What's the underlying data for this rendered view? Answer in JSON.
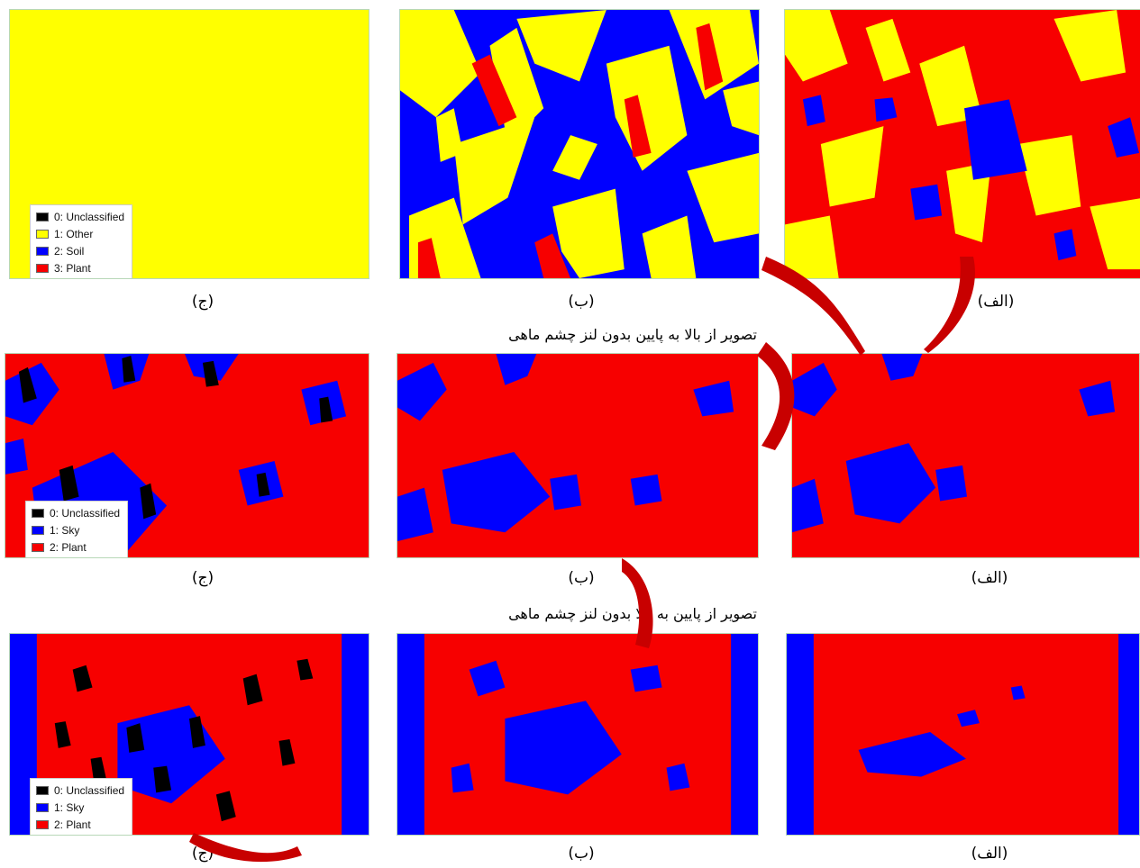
{
  "colors": {
    "plant": "#f70000",
    "blue": "#0000ff",
    "yellow": "#ffff00",
    "black": "#000000",
    "watermark": "#c80000"
  },
  "rows": [
    {
      "title": "",
      "captions": {
        "right": "(الف)",
        "middle": "(ب)",
        "left": "(ج)"
      },
      "legend": [
        "0: Unclassified",
        "1: Other",
        "2: Soil",
        "3: Plant"
      ]
    },
    {
      "title": "تصویر از بالا به پایین بدون لنز چشم ماهی",
      "captions": {
        "right": "(الف)",
        "middle": "(ب)",
        "left": "(ج)"
      },
      "legend": [
        "0: Unclassified",
        "1: Sky",
        "2: Plant"
      ]
    },
    {
      "title": "تصویر از پایین به بالا بدون لنز چشم ماهی",
      "captions": {
        "right": "(الف)",
        "middle": "(ب)",
        "left": "(ج)"
      },
      "legend": [
        "0: Unclassified",
        "1: Sky",
        "2: Plant"
      ]
    }
  ]
}
